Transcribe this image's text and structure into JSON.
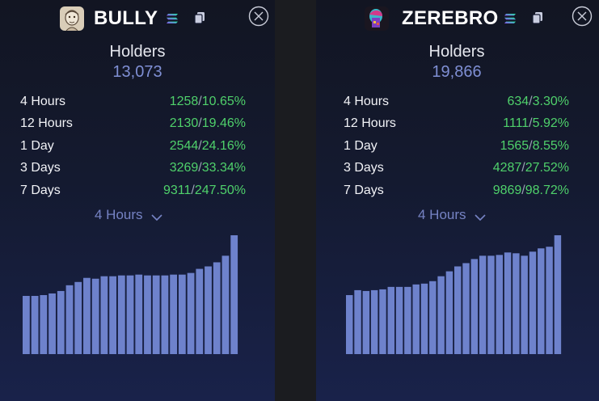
{
  "colors": {
    "accent": "#7f8fd4",
    "positive": "#4fd16b",
    "bar": "#6e82cc"
  },
  "panels": [
    {
      "token": {
        "name": "BULLY",
        "logo_icon": "bully-avatar-icon",
        "chain_icon": "solana-icon"
      },
      "holders_label": "Holders",
      "holders_value": "13,073",
      "stats": [
        {
          "label": "4 Hours",
          "count": "1258",
          "sep": "/",
          "pct": "10.65%"
        },
        {
          "label": "12 Hours",
          "count": "2130",
          "sep": "/",
          "pct": "19.46%"
        },
        {
          "label": "1 Day",
          "count": "2544",
          "sep": "/",
          "pct": "24.16%"
        },
        {
          "label": "3 Days",
          "count": "3269",
          "sep": "/",
          "pct": "33.34%"
        },
        {
          "label": "7 Days",
          "count": "9311",
          "sep": "/",
          "pct": "247.50%"
        }
      ],
      "interval": {
        "selected": "4 Hours"
      },
      "chart_data": {
        "type": "bar",
        "values": [
          71,
          71,
          72,
          74,
          77,
          84,
          88,
          93,
          92,
          95,
          95,
          96,
          96,
          97,
          96,
          96,
          96,
          97,
          97,
          99,
          104,
          107,
          112,
          120,
          145
        ]
      }
    },
    {
      "token": {
        "name": "ZEREBRO",
        "logo_icon": "zerebro-avatar-icon",
        "chain_icon": "solana-icon"
      },
      "holders_label": "Holders",
      "holders_value": "19,866",
      "stats": [
        {
          "label": "4 Hours",
          "count": "634",
          "sep": "/",
          "pct": "3.30%"
        },
        {
          "label": "12 Hours",
          "count": "1111",
          "sep": "/",
          "pct": "5.92%"
        },
        {
          "label": "1 Day",
          "count": "1565",
          "sep": "/",
          "pct": "8.55%"
        },
        {
          "label": "3 Days",
          "count": "4287",
          "sep": "/",
          "pct": "27.52%"
        },
        {
          "label": "7 Days",
          "count": "9869",
          "sep": "/",
          "pct": "98.72%"
        }
      ],
      "interval": {
        "selected": "4 Hours"
      },
      "chart_data": {
        "type": "bar",
        "values": [
          72,
          78,
          77,
          78,
          79,
          82,
          82,
          82,
          85,
          86,
          89,
          95,
          101,
          107,
          111,
          116,
          120,
          120,
          121,
          124,
          123,
          120,
          125,
          129,
          131,
          145
        ]
      }
    }
  ]
}
